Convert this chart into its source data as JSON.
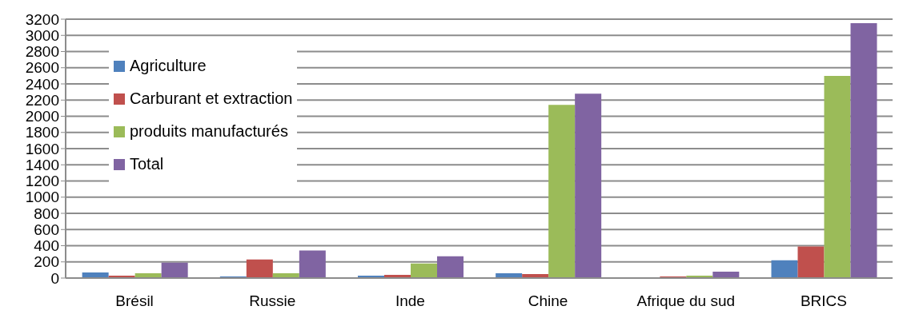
{
  "chart_data": {
    "type": "bar",
    "categories": [
      "Brésil",
      "Russie",
      "Inde",
      "Chine",
      "Afrique du sud",
      "BRICS"
    ],
    "series": [
      {
        "name": "Agriculture",
        "color": "#4f81bd",
        "values": [
          70,
          20,
          30,
          60,
          0,
          220
        ]
      },
      {
        "name": "Carburant et extraction",
        "color": "#c0504d",
        "values": [
          30,
          230,
          40,
          50,
          20,
          390
        ]
      },
      {
        "name": "produits manufacturés",
        "color": "#9bbb59",
        "values": [
          60,
          60,
          180,
          2140,
          30,
          2500
        ]
      },
      {
        "name": "Total",
        "color": "#8064a2",
        "values": [
          190,
          340,
          270,
          2280,
          80,
          3150
        ]
      }
    ],
    "ylim": [
      0,
      3200
    ],
    "yticks": [
      0,
      200,
      400,
      600,
      800,
      1000,
      1200,
      1400,
      1600,
      1800,
      2000,
      2200,
      2400,
      2600,
      2800,
      3000,
      3200
    ],
    "grid": "y",
    "legend": "top left"
  }
}
